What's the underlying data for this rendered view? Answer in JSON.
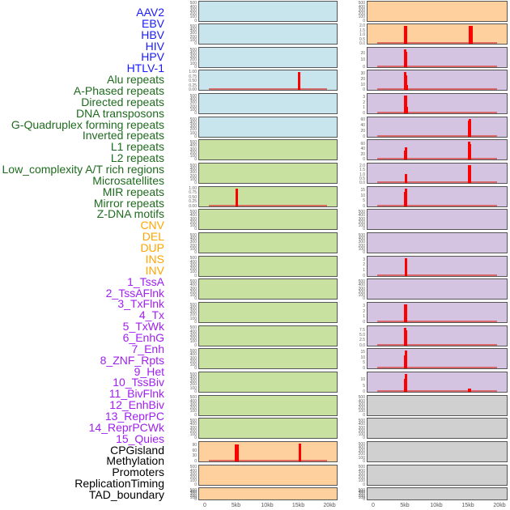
{
  "labels": [
    {
      "text": "AAV2",
      "color": "#1a1aff"
    },
    {
      "text": "EBV",
      "color": "#1a1aff"
    },
    {
      "text": "HBV",
      "color": "#1a1aff"
    },
    {
      "text": "HIV",
      "color": "#1a1aff"
    },
    {
      "text": "HPV",
      "color": "#1a1aff"
    },
    {
      "text": "HTLV-1",
      "color": "#1a1aff"
    },
    {
      "text": "Alu repeats",
      "color": "#1e6b1e"
    },
    {
      "text": "A-Phased repeats",
      "color": "#1e6b1e"
    },
    {
      "text": "Directed repeats",
      "color": "#1e6b1e"
    },
    {
      "text": "DNA transposons",
      "color": "#1e6b1e"
    },
    {
      "text": "G-Quadruplex forming repeats",
      "color": "#1e6b1e"
    },
    {
      "text": "Inverted repeats",
      "color": "#1e6b1e"
    },
    {
      "text": "L1 repeats",
      "color": "#1e6b1e"
    },
    {
      "text": "L2 repeats",
      "color": "#1e6b1e"
    },
    {
      "text": "Low_complexity A/T rich regions",
      "color": "#1e6b1e"
    },
    {
      "text": "Microsatellites",
      "color": "#1e6b1e"
    },
    {
      "text": "MIR repeats",
      "color": "#1e6b1e"
    },
    {
      "text": "Mirror repeats",
      "color": "#1e6b1e"
    },
    {
      "text": "Z-DNA motifs",
      "color": "#1e6b1e"
    },
    {
      "text": "CNV",
      "color": "#ffa500"
    },
    {
      "text": "DEL",
      "color": "#ffa500"
    },
    {
      "text": "DUP",
      "color": "#ffa500"
    },
    {
      "text": "INS",
      "color": "#ffa500"
    },
    {
      "text": "INV",
      "color": "#ffa500"
    },
    {
      "text": "1_TssA",
      "color": "#a020f0"
    },
    {
      "text": "2_TssAFlnk",
      "color": "#a020f0"
    },
    {
      "text": "3_TxFlnk",
      "color": "#a020f0"
    },
    {
      "text": "4_Tx",
      "color": "#a020f0"
    },
    {
      "text": "5_TxWk",
      "color": "#a020f0"
    },
    {
      "text": "6_EnhG",
      "color": "#a020f0"
    },
    {
      "text": "7_Enh",
      "color": "#a020f0"
    },
    {
      "text": "8_ZNF_Rpts",
      "color": "#a020f0"
    },
    {
      "text": "9_Het",
      "color": "#a020f0"
    },
    {
      "text": "10_TssBiv",
      "color": "#a020f0"
    },
    {
      "text": "11_BivFlnk",
      "color": "#a020f0"
    },
    {
      "text": "12_EnhBiv",
      "color": "#a020f0"
    },
    {
      "text": "13_ReprPC",
      "color": "#a020f0"
    },
    {
      "text": "14_ReprPCWk",
      "color": "#a020f0"
    },
    {
      "text": "15_Quies",
      "color": "#a020f0"
    },
    {
      "text": "CPGisland",
      "color": "#000000"
    },
    {
      "text": "Methylation",
      "color": "#000000"
    },
    {
      "text": "Promoters",
      "color": "#000000"
    },
    {
      "text": "ReplicationTiming",
      "color": "#000000"
    },
    {
      "text": "TAD_boundary",
      "color": "#000000"
    }
  ],
  "chart_data": {
    "type": "bar",
    "x_range": [
      0,
      20
    ],
    "x_ticks": [
      "0",
      "5kb",
      "10kb",
      "15kb",
      "20kb"
    ],
    "x_tick_values": [
      0,
      5,
      10,
      15,
      20
    ],
    "colors": {
      "blue": "#c8e4ec",
      "green": "#c8e0a0",
      "orange": "#fed09e",
      "purple": "#d5c4e1",
      "gray": "#d0d0d0",
      "bar": "#ff0000"
    },
    "columns": [
      {
        "panels": [
          {
            "bg": "blue",
            "yticks": [
              "0",
              "100",
              "200",
              "300",
              "400",
              "500"
            ],
            "ymax": 520,
            "bars": []
          },
          {
            "bg": "blue",
            "yticks": [
              "0",
              "100",
              "200",
              "300",
              "400",
              "500"
            ],
            "ymax": 520,
            "bars": []
          },
          {
            "bg": "blue",
            "yticks": [
              "0",
              "100",
              "200",
              "300",
              "400",
              "500"
            ],
            "ymax": 520,
            "bars": []
          },
          {
            "bg": "blue",
            "yticks": [
              "0.00",
              "0.25",
              "0.50",
              "0.75",
              "1.00"
            ],
            "ymax": 1.0,
            "bars": [
              {
                "x": 15,
                "v": 1.0
              }
            ]
          },
          {
            "bg": "blue",
            "yticks": [
              "0",
              "100",
              "200",
              "300",
              "400",
              "500"
            ],
            "ymax": 520,
            "bars": []
          },
          {
            "bg": "blue",
            "yticks": [
              "0",
              "100",
              "200",
              "300",
              "400",
              "500"
            ],
            "ymax": 520,
            "bars": []
          },
          {
            "bg": "green",
            "yticks": [
              "0",
              "100",
              "200",
              "300",
              "400",
              "500"
            ],
            "ymax": 520,
            "bars": []
          },
          {
            "bg": "green",
            "yticks": [
              "0",
              "100",
              "200",
              "300",
              "400",
              "500"
            ],
            "ymax": 520,
            "bars": []
          },
          {
            "bg": "green",
            "yticks": [
              "0.00",
              "0.25",
              "0.50",
              "0.75",
              "1.00"
            ],
            "ymax": 1.0,
            "bars": [
              {
                "x": 5,
                "v": 1.0
              }
            ]
          },
          {
            "bg": "green",
            "yticks": [
              "0",
              "100",
              "200",
              "300",
              "400",
              "500"
            ],
            "ymax": 520,
            "bars": []
          },
          {
            "bg": "green",
            "yticks": [
              "0",
              "100",
              "200",
              "300",
              "400",
              "500"
            ],
            "ymax": 520,
            "bars": []
          },
          {
            "bg": "green",
            "yticks": [
              "0",
              "100",
              "200",
              "300",
              "400",
              "500"
            ],
            "ymax": 520,
            "bars": []
          },
          {
            "bg": "green",
            "yticks": [
              "0",
              "100",
              "200",
              "300",
              "400",
              "500"
            ],
            "ymax": 520,
            "bars": []
          },
          {
            "bg": "green",
            "yticks": [
              "0",
              "100",
              "200",
              "300",
              "400",
              "500"
            ],
            "ymax": 520,
            "bars": []
          },
          {
            "bg": "green",
            "yticks": [
              "0",
              "100",
              "200",
              "300",
              "400",
              "500"
            ],
            "ymax": 520,
            "bars": []
          },
          {
            "bg": "green",
            "yticks": [
              "0",
              "100",
              "200",
              "300",
              "400",
              "500"
            ],
            "ymax": 520,
            "bars": []
          },
          {
            "bg": "green",
            "yticks": [
              "0",
              "100",
              "200",
              "300",
              "400",
              "500"
            ],
            "ymax": 520,
            "bars": []
          },
          {
            "bg": "green",
            "yticks": [
              "0",
              "100",
              "200",
              "300",
              "400",
              "500"
            ],
            "ymax": 520,
            "bars": []
          },
          {
            "bg": "green",
            "yticks": [
              "0",
              "100",
              "200",
              "300",
              "400",
              "500"
            ],
            "ymax": 520,
            "bars": []
          },
          {
            "bg": "orange",
            "yticks": [
              "0",
              "30",
              "60",
              "90"
            ],
            "ymax": 100,
            "bars": [
              {
                "x": 4.9,
                "v": 96
              },
              {
                "x": 5.1,
                "v": 96
              },
              {
                "x": 15.1,
                "v": 100
              }
            ]
          },
          {
            "bg": "orange",
            "yticks": [
              "0",
              "100",
              "200",
              "300",
              "400",
              "500"
            ],
            "ymax": 520,
            "bars": []
          },
          {
            "bg": "orange",
            "yticks": [
              "0",
              "100",
              "200",
              "300",
              "400",
              "500"
            ],
            "ymax": 520,
            "bars": []
          }
        ]
      },
      {
        "panels": [
          {
            "bg": "orange",
            "yticks": [
              "0",
              "100",
              "200",
              "300",
              "400",
              "500"
            ],
            "ymax": 520,
            "bars": []
          },
          {
            "bg": "orange",
            "yticks": [
              "0.0",
              "0.5",
              "1.0",
              "1.5",
              "2.0"
            ],
            "ymax": 2.0,
            "bars": [
              {
                "x": 4.9,
                "v": 2.0
              },
              {
                "x": 5.1,
                "v": 2.0
              },
              {
                "x": 15.2,
                "v": 2.0
              },
              {
                "x": 15.4,
                "v": 2.0
              }
            ]
          },
          {
            "bg": "purple",
            "yticks": [
              "0",
              "10",
              "20"
            ],
            "ymax": 26,
            "bars": [
              {
                "x": 4.9,
                "v": 26
              },
              {
                "x": 5.1,
                "v": 22
              }
            ]
          },
          {
            "bg": "purple",
            "yticks": [
              "0",
              "10",
              "20",
              "30"
            ],
            "ymax": 33,
            "bars": [
              {
                "x": 4.9,
                "v": 33
              },
              {
                "x": 5.1,
                "v": 27
              },
              {
                "x": 5.2,
                "v": 9
              }
            ]
          },
          {
            "bg": "purple",
            "yticks": [
              "0",
              "1",
              "2",
              "3"
            ],
            "ymax": 3.3,
            "bars": [
              {
                "x": 4.9,
                "v": 3.3
              },
              {
                "x": 5.1,
                "v": 3.3
              },
              {
                "x": 5.2,
                "v": 1.2
              }
            ]
          },
          {
            "bg": "purple",
            "yticks": [
              "0",
              "20",
              "40",
              "60"
            ],
            "ymax": 65,
            "bars": [
              {
                "x": 15.0,
                "v": 57
              },
              {
                "x": 15.2,
                "v": 65
              }
            ]
          },
          {
            "bg": "purple",
            "yticks": [
              "0",
              "20",
              "40",
              "60"
            ],
            "ymax": 67,
            "bars": [
              {
                "x": 4.9,
                "v": 34
              },
              {
                "x": 5.1,
                "v": 48
              },
              {
                "x": 15.0,
                "v": 67
              },
              {
                "x": 15.2,
                "v": 59
              }
            ]
          },
          {
            "bg": "purple",
            "yticks": [
              "0.0",
              "0.5",
              "1.0",
              "1.5",
              "2.0"
            ],
            "ymax": 2.1,
            "bars": [
              {
                "x": 5.1,
                "v": 1.1
              },
              {
                "x": 15.0,
                "v": 2.1
              },
              {
                "x": 15.2,
                "v": 2.1
              }
            ]
          },
          {
            "bg": "purple",
            "yticks": [
              "0",
              "5",
              "10",
              "15"
            ],
            "ymax": 17,
            "bars": [
              {
                "x": 4.9,
                "v": 13.5
              },
              {
                "x": 5.1,
                "v": 17
              }
            ]
          },
          {
            "bg": "purple",
            "yticks": [
              "0",
              "100",
              "200",
              "300",
              "400",
              "500"
            ],
            "ymax": 520,
            "bars": []
          },
          {
            "bg": "purple",
            "yticks": [
              "0",
              "100",
              "200",
              "300",
              "400",
              "500"
            ],
            "ymax": 520,
            "bars": []
          },
          {
            "bg": "purple",
            "yticks": [
              "0",
              "1",
              "2",
              "3"
            ],
            "ymax": 3.3,
            "bars": [
              {
                "x": 5.0,
                "v": 3.3
              }
            ]
          },
          {
            "bg": "purple",
            "yticks": [
              "0",
              "100",
              "200",
              "300",
              "400",
              "500"
            ],
            "ymax": 520,
            "bars": []
          },
          {
            "bg": "purple",
            "yticks": [
              "0",
              "1",
              "2",
              "3"
            ],
            "ymax": 3.3,
            "bars": [
              {
                "x": 4.9,
                "v": 3.3
              },
              {
                "x": 5.1,
                "v": 3.3
              }
            ]
          },
          {
            "bg": "purple",
            "yticks": [
              "0.0",
              "2.5",
              "5.0",
              "7.5"
            ],
            "ymax": 9,
            "bars": [
              {
                "x": 4.9,
                "v": 9
              },
              {
                "x": 5.1,
                "v": 7.5
              }
            ]
          },
          {
            "bg": "purple",
            "yticks": [
              "0",
              "5",
              "10",
              "15"
            ],
            "ymax": 16,
            "bars": [
              {
                "x": 4.9,
                "v": 11.5
              },
              {
                "x": 5.1,
                "v": 16
              }
            ]
          },
          {
            "bg": "purple",
            "yticks": [
              "0",
              "5",
              "10"
            ],
            "ymax": 15,
            "bars": [
              {
                "x": 4.9,
                "v": 11
              },
              {
                "x": 5.1,
                "v": 15
              },
              {
                "x": 15.0,
                "v": 3
              },
              {
                "x": 15.2,
                "v": 3
              }
            ]
          },
          {
            "bg": "gray",
            "yticks": [
              "0",
              "100",
              "200",
              "300",
              "400",
              "500"
            ],
            "ymax": 520,
            "bars": []
          },
          {
            "bg": "gray",
            "yticks": [
              "0",
              "100",
              "200",
              "300",
              "400",
              "500"
            ],
            "ymax": 520,
            "bars": []
          },
          {
            "bg": "gray",
            "yticks": [
              "0",
              "100",
              "200",
              "300",
              "400",
              "500"
            ],
            "ymax": 520,
            "bars": []
          },
          {
            "bg": "gray",
            "yticks": [
              "0",
              "100",
              "200",
              "300",
              "400",
              "500"
            ],
            "ymax": 520,
            "bars": []
          },
          {
            "bg": "gray",
            "yticks": [
              "0",
              "100",
              "200",
              "300",
              "400",
              "500"
            ],
            "ymax": 520,
            "bars": []
          }
        ]
      }
    ]
  }
}
